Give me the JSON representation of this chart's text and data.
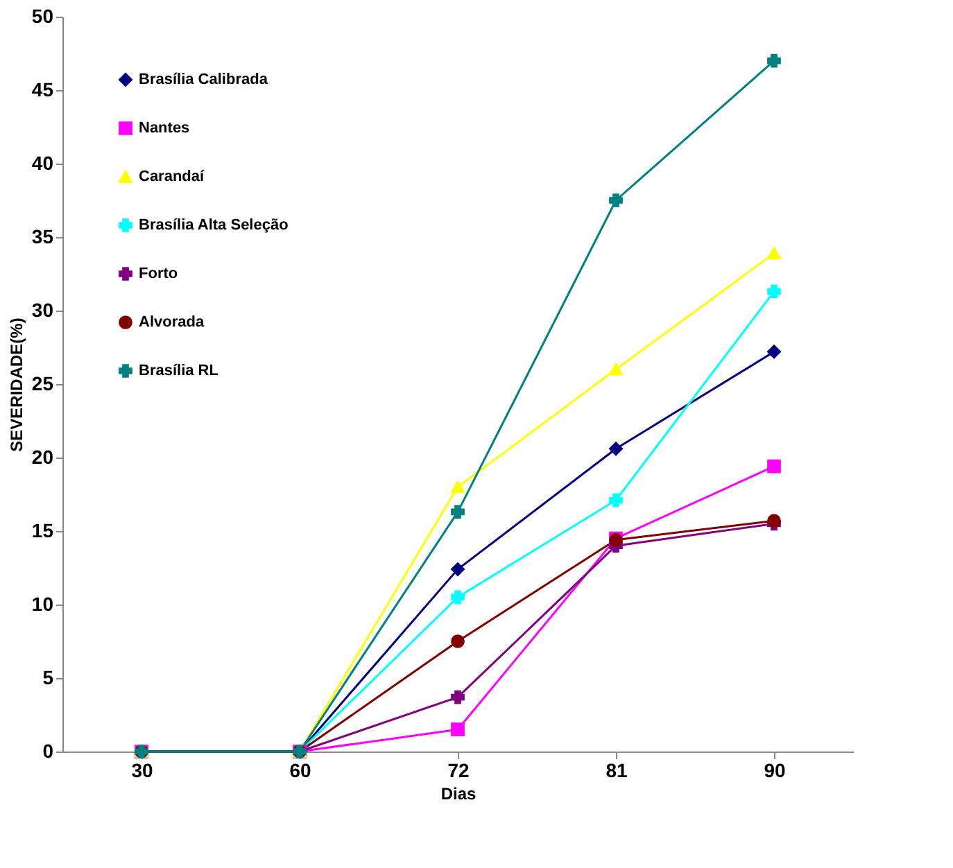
{
  "chart_data": {
    "type": "line",
    "xlabel": "Dias",
    "ylabel": "SEVERIDADE(%)",
    "categories": [
      "30",
      "60",
      "72",
      "81",
      "90"
    ],
    "ylim": [
      0,
      50
    ],
    "yticks": [
      0,
      5,
      10,
      15,
      20,
      25,
      30,
      35,
      40,
      45,
      50
    ],
    "grid": false,
    "legend": "top left",
    "series": [
      {
        "name": "Brasília Calibrada",
        "color": "#000080",
        "marker": "diamond",
        "values": [
          0,
          0,
          12.4,
          20.6,
          27.2
        ]
      },
      {
        "name": "Nantes",
        "color": "#ff00ff",
        "marker": "square",
        "values": [
          0,
          0,
          1.5,
          14.5,
          19.4
        ]
      },
      {
        "name": "Carandaí",
        "color": "#ffff00",
        "marker": "triangle",
        "values": [
          0,
          0,
          18.0,
          26.0,
          33.9
        ]
      },
      {
        "name": "Brasília Alta Seleção",
        "color": "#00ffff",
        "marker": "cross",
        "values": [
          0,
          0,
          10.5,
          17.1,
          31.3
        ]
      },
      {
        "name": "Forto",
        "color": "#800080",
        "marker": "cross",
        "values": [
          0,
          0,
          3.7,
          14.0,
          15.5
        ]
      },
      {
        "name": "Alvorada",
        "color": "#800000",
        "marker": "circle",
        "values": [
          0,
          0,
          7.5,
          14.4,
          15.7
        ]
      },
      {
        "name": "Brasília RL",
        "color": "#008080",
        "marker": "cross",
        "values": [
          0,
          0,
          16.3,
          37.5,
          47.0
        ]
      }
    ]
  }
}
